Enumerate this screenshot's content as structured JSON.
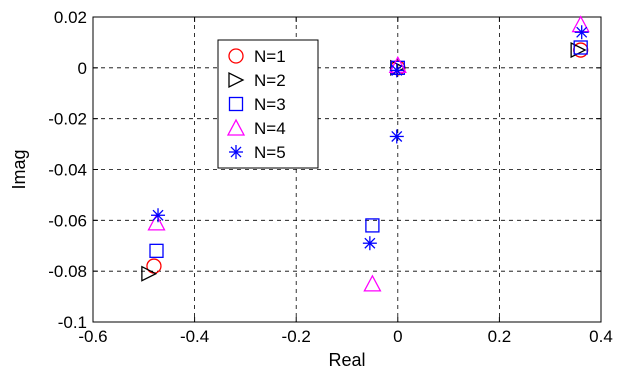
{
  "chart_data": {
    "type": "scatter",
    "xlabel": "Real",
    "ylabel": "Imag",
    "xlim": [
      -0.6,
      0.4
    ],
    "ylim": [
      -0.1,
      0.02
    ],
    "xticks": [
      "-0.6",
      "-0.4",
      "-0.2",
      "0",
      "0.2",
      "0.4"
    ],
    "yticks": [
      "0.02",
      "0",
      "-0.02",
      "-0.04",
      "-0.06",
      "-0.08",
      "-0.1"
    ],
    "grid": true,
    "legend_position": "upper-left-center",
    "series": [
      {
        "name": "N=1",
        "marker": "circle",
        "color": "#ff0000",
        "points": [
          [
            -0.48,
            -0.078
          ],
          [
            0.0,
            0.0
          ],
          [
            0.36,
            0.007
          ]
        ]
      },
      {
        "name": "N=2",
        "marker": "triangle-right",
        "color": "#000000",
        "points": [
          [
            -0.49,
            -0.081
          ],
          [
            0.0,
            0.0
          ],
          [
            0.355,
            0.007
          ]
        ]
      },
      {
        "name": "N=3",
        "marker": "square",
        "color": "#0000ff",
        "points": [
          [
            -0.475,
            -0.072
          ],
          [
            -0.05,
            -0.062
          ],
          [
            0.0,
            0.0
          ],
          [
            0.36,
            0.008
          ]
        ]
      },
      {
        "name": "N=4",
        "marker": "triangle-up",
        "color": "#ff00ff",
        "points": [
          [
            -0.475,
            -0.061
          ],
          [
            -0.05,
            -0.085
          ],
          [
            0.0,
            0.001
          ],
          [
            0.36,
            0.017
          ]
        ]
      },
      {
        "name": "N=5",
        "marker": "asterisk",
        "color": "#0000ff",
        "points": [
          [
            -0.472,
            -0.058
          ],
          [
            -0.055,
            -0.069
          ],
          [
            -0.002,
            -0.027
          ],
          [
            -0.002,
            -0.001
          ],
          [
            0.362,
            0.014
          ]
        ]
      }
    ]
  }
}
